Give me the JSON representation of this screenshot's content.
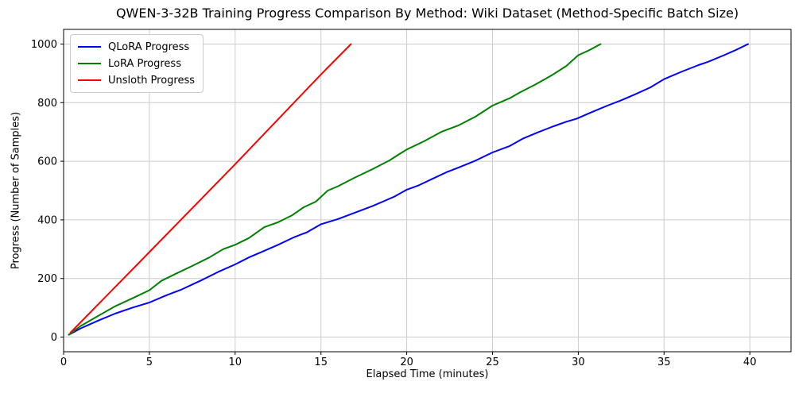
{
  "chart_data": {
    "type": "line",
    "title": "QWEN-3-32B Training Progress Comparison By Method: Wiki Dataset (Method-Specific Batch Size)",
    "xlabel": "Elapsed Time (minutes)",
    "ylabel": "Progress (Number of Samples)",
    "xlim": [
      0,
      42.4
    ],
    "ylim": [
      -50,
      1050
    ],
    "xticks": [
      0,
      5,
      10,
      15,
      20,
      25,
      30,
      35,
      40
    ],
    "yticks": [
      0,
      200,
      400,
      600,
      800,
      1000
    ],
    "grid": true,
    "grid_color": "#cccccc",
    "axis_color": "#000000",
    "background": "#ffffff",
    "legend_position": "upper-left",
    "series": [
      {
        "name": "QLoRA Progress",
        "color": "#0000ff",
        "points": [
          [
            0.3,
            8
          ],
          [
            1,
            30
          ],
          [
            2,
            56
          ],
          [
            3,
            80
          ],
          [
            4,
            100
          ],
          [
            5,
            118
          ],
          [
            6,
            143
          ],
          [
            6.9,
            163
          ],
          [
            8,
            193
          ],
          [
            9,
            222
          ],
          [
            10,
            248
          ],
          [
            10.8,
            272
          ],
          [
            11.6,
            292
          ],
          [
            12.5,
            315
          ],
          [
            13.4,
            340
          ],
          [
            14.2,
            358
          ],
          [
            15,
            385
          ],
          [
            16,
            403
          ],
          [
            17,
            425
          ],
          [
            18,
            447
          ],
          [
            18.6,
            462
          ],
          [
            19.3,
            480
          ],
          [
            20,
            503
          ],
          [
            20.7,
            518
          ],
          [
            21.5,
            540
          ],
          [
            22.3,
            562
          ],
          [
            23,
            578
          ],
          [
            24,
            602
          ],
          [
            25,
            630
          ],
          [
            26,
            652
          ],
          [
            26.8,
            678
          ],
          [
            27.7,
            700
          ],
          [
            28.5,
            718
          ],
          [
            29.3,
            735
          ],
          [
            29.9,
            745
          ],
          [
            30.8,
            768
          ],
          [
            31.7,
            790
          ],
          [
            32.5,
            808
          ],
          [
            33.3,
            828
          ],
          [
            34.2,
            852
          ],
          [
            35,
            880
          ],
          [
            36,
            905
          ],
          [
            37,
            928
          ],
          [
            37.6,
            940
          ],
          [
            38.5,
            962
          ],
          [
            39.2,
            980
          ],
          [
            39.9,
            1000
          ]
        ]
      },
      {
        "name": "LoRA Progress",
        "color": "#008000",
        "points": [
          [
            0.3,
            8
          ],
          [
            1,
            38
          ],
          [
            2,
            72
          ],
          [
            3,
            105
          ],
          [
            4,
            132
          ],
          [
            5,
            160
          ],
          [
            5.7,
            192
          ],
          [
            6.5,
            215
          ],
          [
            7.5,
            243
          ],
          [
            8.5,
            272
          ],
          [
            9.3,
            300
          ],
          [
            10,
            315
          ],
          [
            10.8,
            338
          ],
          [
            11.7,
            375
          ],
          [
            12.5,
            392
          ],
          [
            13.3,
            415
          ],
          [
            14,
            443
          ],
          [
            14.7,
            462
          ],
          [
            15.4,
            500
          ],
          [
            16,
            515
          ],
          [
            17,
            545
          ],
          [
            18,
            573
          ],
          [
            19,
            603
          ],
          [
            19.5,
            622
          ],
          [
            20,
            640
          ],
          [
            21,
            668
          ],
          [
            22,
            700
          ],
          [
            23,
            722
          ],
          [
            24,
            752
          ],
          [
            25,
            790
          ],
          [
            26,
            815
          ],
          [
            26.6,
            835
          ],
          [
            27.5,
            862
          ],
          [
            28.5,
            895
          ],
          [
            29.3,
            925
          ],
          [
            30,
            962
          ],
          [
            30.6,
            978
          ],
          [
            31.3,
            1000
          ]
        ]
      },
      {
        "name": "Unsloth Progress",
        "color": "#ff0000",
        "points": [
          [
            0.4,
            15
          ],
          [
            5,
            290
          ],
          [
            10,
            590
          ],
          [
            15,
            896
          ],
          [
            16.75,
            1000
          ]
        ]
      }
    ]
  }
}
